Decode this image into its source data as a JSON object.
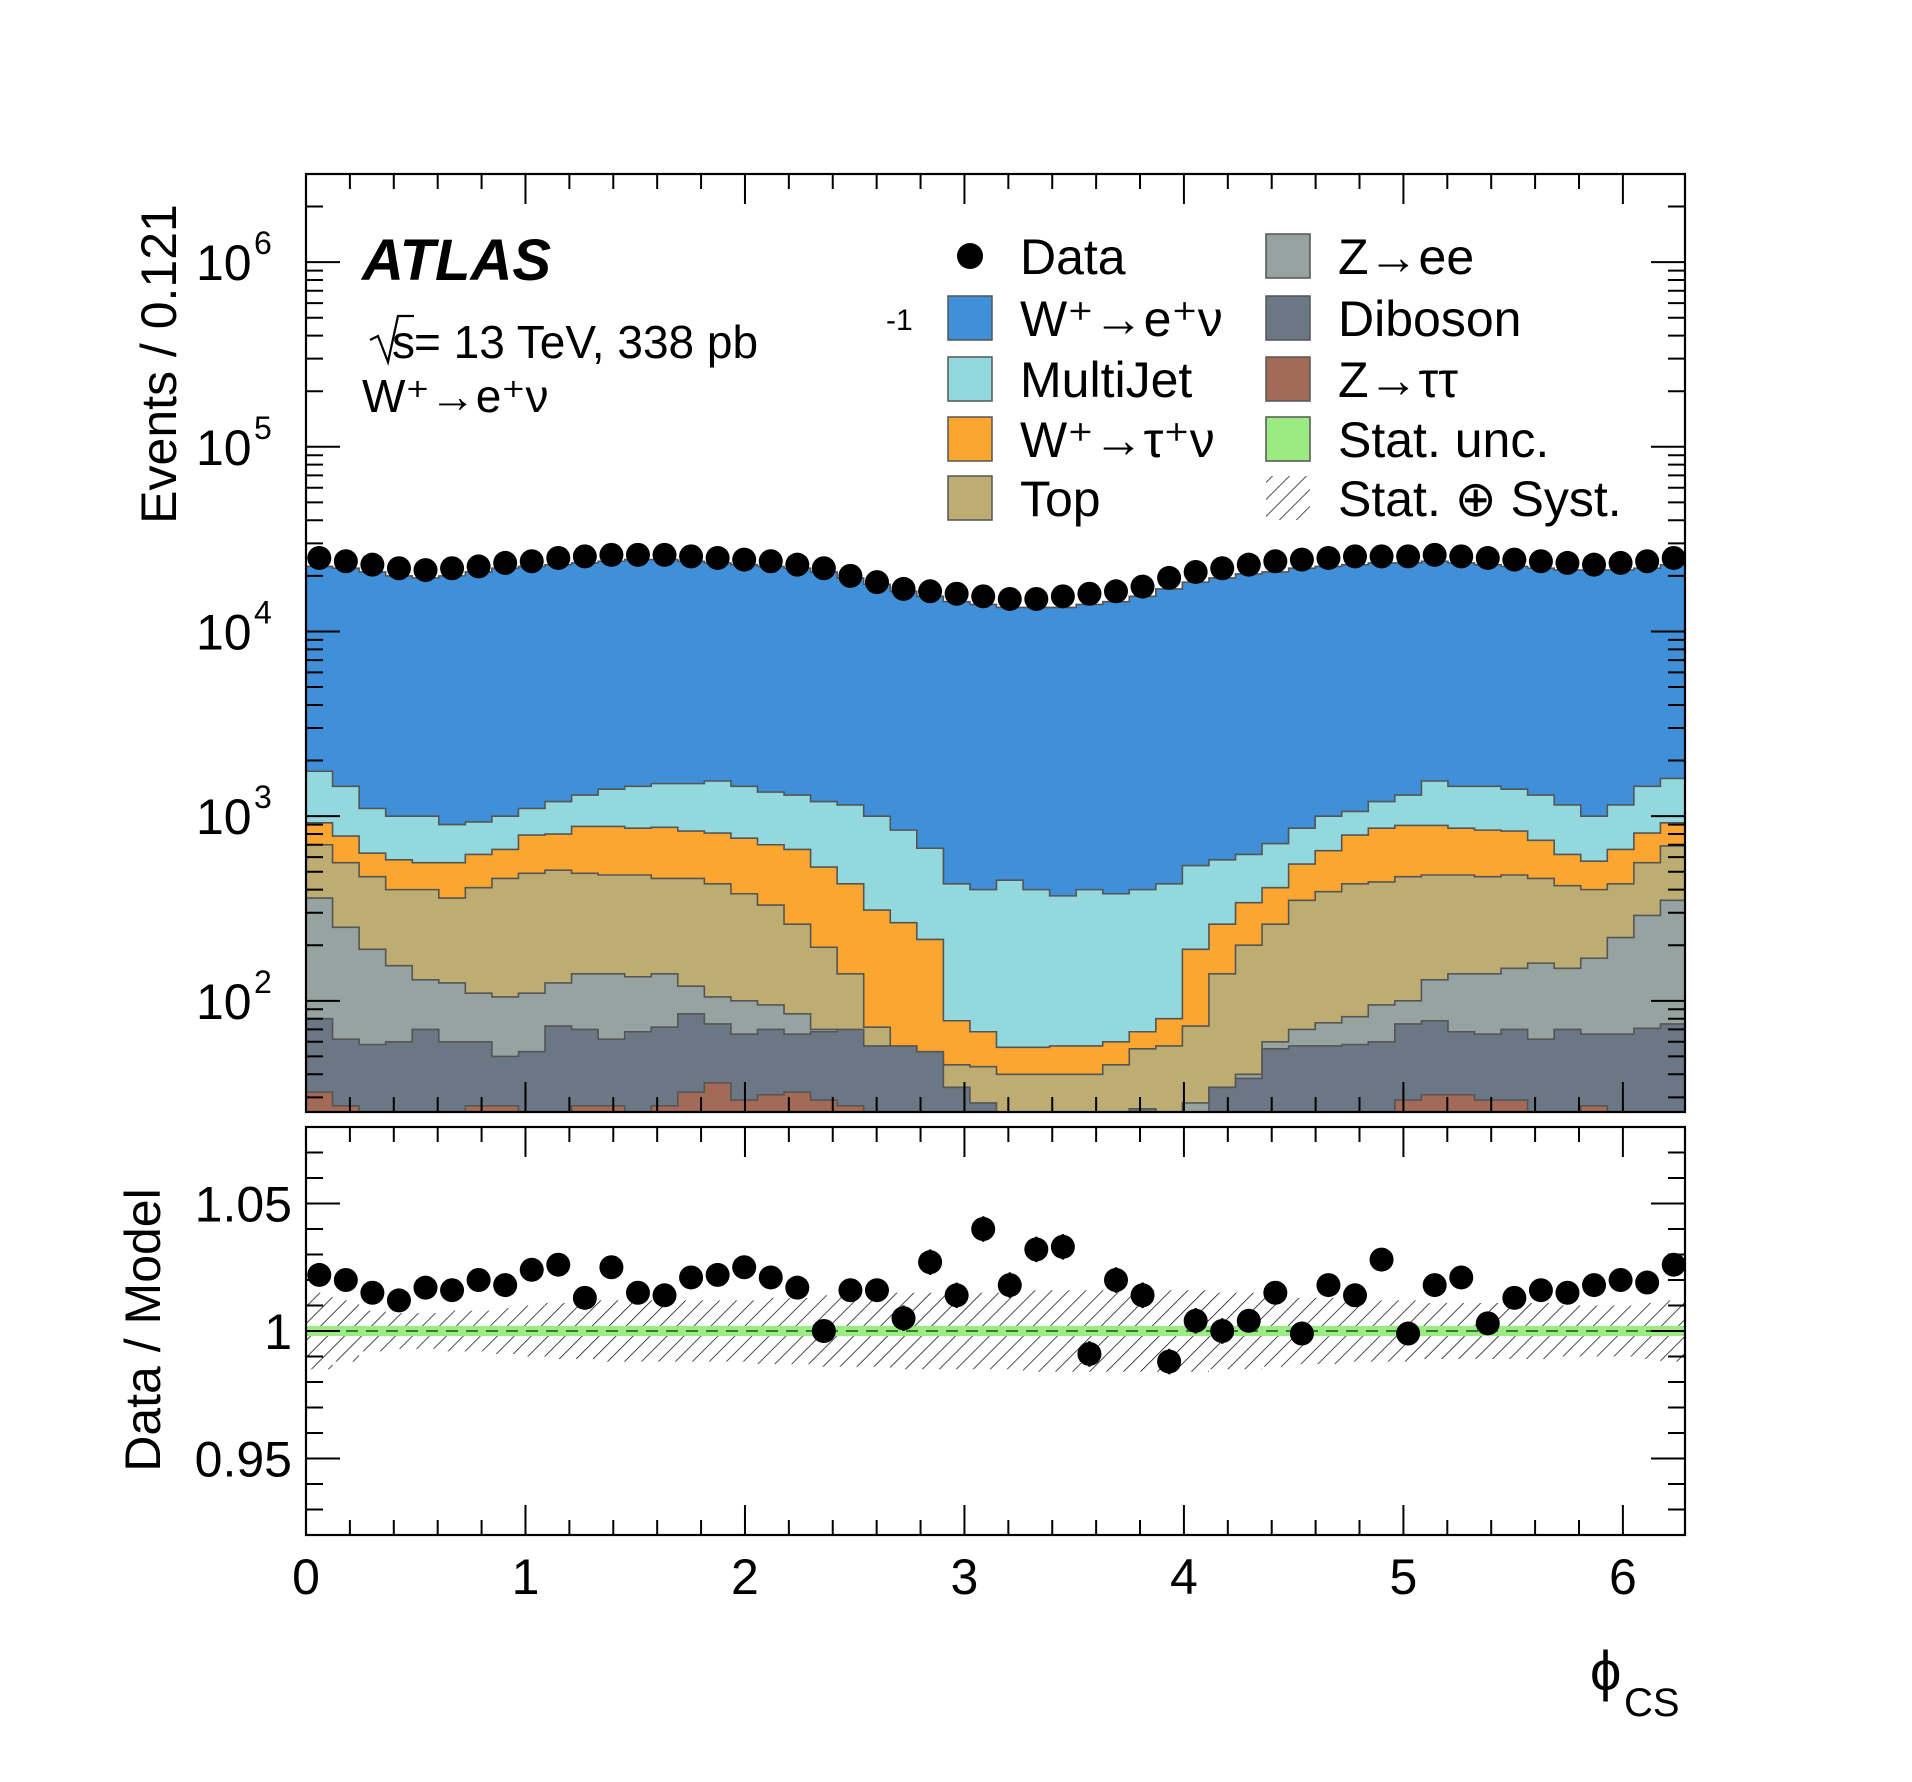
{
  "figure": {
    "experiment_label": "ATLAS",
    "energy_label_sqrt": "s",
    "energy_label_rest": " = 13 TeV, 338 pb",
    "energy_label_exp": "-1",
    "channel_label": "W⁺→e⁺ν"
  },
  "legend": {
    "entries": [
      {
        "label": "Data",
        "style": "marker",
        "color": "#000000"
      },
      {
        "label": "W⁺→e⁺ν",
        "style": "fill",
        "color": "#3f8fd9"
      },
      {
        "label": "MultiJet",
        "style": "fill",
        "color": "#93d8dc"
      },
      {
        "label": "W⁺→τ⁺ν",
        "style": "fill",
        "color": "#faa630"
      },
      {
        "label": "Top",
        "style": "fill",
        "color": "#bdad72"
      },
      {
        "label": "Z→ee",
        "style": "fill",
        "color": "#97a3a0"
      },
      {
        "label": "Diboson",
        "style": "fill",
        "color": "#6b7784"
      },
      {
        "label": "Z→ττ",
        "style": "fill",
        "color": "#a36a58"
      },
      {
        "label": "Stat. unc.",
        "style": "fill",
        "color": "#9beb82"
      },
      {
        "label": "Stat. ⊕ Syst.",
        "style": "hatch",
        "color": "#000000"
      }
    ]
  },
  "chart_data": [
    {
      "type": "area",
      "subtype": "stacked-histogram",
      "ylabel": "Events / 0.121",
      "yscale": "log",
      "ylim": [
        25,
        3000000
      ],
      "xlim": [
        0,
        6.283
      ],
      "yticks": [
        100,
        1000,
        10000,
        100000,
        1000000
      ],
      "ytick_labels": [
        {
          "base": "10",
          "exp": "2"
        },
        {
          "base": "10",
          "exp": "3"
        },
        {
          "base": "10",
          "exp": "4"
        },
        {
          "base": "10",
          "exp": "5"
        },
        {
          "base": "10",
          "exp": "6"
        }
      ],
      "bin_width": 0.121,
      "nbins": 52,
      "series_bottom_to_top": [
        "Z→ττ",
        "Diboson",
        "Z→ee",
        "Top",
        "W⁺→τ⁺ν",
        "MultiJet",
        "W⁺→e⁺ν"
      ],
      "stack_totals": {
        "Z→ττ": [
          32,
          27,
          23,
          22,
          22,
          22,
          27,
          27,
          22,
          22,
          27,
          27,
          24,
          27,
          32,
          36,
          29,
          31,
          32,
          29,
          27,
          24,
          24,
          22,
          22,
          20,
          18,
          14,
          14,
          14,
          14,
          14,
          14,
          14,
          14,
          18,
          20,
          22,
          22,
          22,
          24,
          29,
          31,
          31,
          29,
          29,
          24,
          22,
          27,
          24,
          21,
          21
        ],
        "Diboson": [
          80,
          62,
          58,
          60,
          70,
          60,
          60,
          50,
          53,
          73,
          70,
          62,
          68,
          72,
          85,
          75,
          66,
          70,
          66,
          68,
          70,
          57,
          57,
          53,
          34,
          28,
          24,
          24,
          24,
          24,
          24,
          26,
          24,
          24,
          34,
          38,
          55,
          57,
          57,
          58,
          60,
          75,
          78,
          68,
          66,
          70,
          62,
          70,
          66,
          66,
          71,
          75
        ],
        "Z→ee": [
          360,
          250,
          190,
          155,
          130,
          125,
          110,
          105,
          110,
          125,
          140,
          140,
          135,
          140,
          120,
          105,
          100,
          95,
          85,
          70,
          60,
          50,
          36,
          28,
          24,
          24,
          24,
          24,
          24,
          24,
          24,
          24,
          24,
          28,
          34,
          40,
          60,
          70,
          76,
          82,
          95,
          100,
          130,
          140,
          140,
          150,
          160,
          150,
          170,
          220,
          290,
          350
        ],
        "Top": [
          700,
          560,
          470,
          400,
          400,
          360,
          410,
          460,
          490,
          510,
          490,
          480,
          480,
          460,
          460,
          430,
          380,
          330,
          260,
          195,
          140,
          72,
          55,
          48,
          45,
          44,
          40,
          40,
          40,
          40,
          45,
          55,
          57,
          73,
          140,
          200,
          260,
          350,
          390,
          430,
          440,
          470,
          480,
          480,
          470,
          480,
          460,
          420,
          400,
          430,
          560,
          690
        ],
        "W⁺→τ⁺ν": [
          920,
          780,
          630,
          580,
          560,
          560,
          620,
          660,
          790,
          800,
          880,
          880,
          860,
          870,
          830,
          810,
          760,
          700,
          660,
          530,
          430,
          310,
          265,
          215,
          78,
          68,
          56,
          56,
          57,
          57,
          60,
          68,
          80,
          190,
          260,
          340,
          410,
          550,
          650,
          790,
          860,
          890,
          890,
          860,
          840,
          830,
          740,
          620,
          570,
          660,
          810,
          920
        ],
        "MultiJet": [
          1750,
          1450,
          1100,
          1000,
          1000,
          900,
          930,
          1000,
          1100,
          1200,
          1300,
          1400,
          1450,
          1500,
          1500,
          1550,
          1450,
          1350,
          1300,
          1200,
          1150,
          1000,
          840,
          670,
          430,
          400,
          450,
          400,
          370,
          400,
          380,
          400,
          430,
          540,
          580,
          620,
          710,
          860,
          1000,
          1060,
          1200,
          1300,
          1550,
          1450,
          1450,
          1400,
          1300,
          1150,
          1000,
          1150,
          1450,
          1600
        ],
        "W⁺→e⁺ν": [
          22500,
          22000,
          21000,
          20000,
          19500,
          20000,
          21000,
          22000,
          22500,
          23000,
          23500,
          24000,
          24500,
          24500,
          24000,
          23500,
          23000,
          22500,
          22000,
          21000,
          19500,
          18000,
          16500,
          15500,
          14500,
          14000,
          13500,
          13500,
          13500,
          14000,
          14500,
          15500,
          17000,
          18500,
          19500,
          20500,
          21000,
          22000,
          22500,
          23000,
          23500,
          23500,
          24000,
          23500,
          23000,
          22500,
          22000,
          21500,
          21500,
          21500,
          22000,
          23000
        ]
      },
      "data_values": [
        25000,
        24000,
        23000,
        22000,
        21500,
        22000,
        22500,
        23500,
        24000,
        25000,
        25500,
        26000,
        26000,
        26000,
        25500,
        25000,
        24500,
        24000,
        23000,
        22000,
        20000,
        18500,
        17000,
        16500,
        16000,
        15500,
        15000,
        15000,
        15500,
        16000,
        16500,
        17500,
        19500,
        21000,
        22000,
        23000,
        24000,
        24500,
        25000,
        25500,
        25500,
        25500,
        26000,
        25500,
        25000,
        24500,
        24000,
        23500,
        23000,
        23500,
        24000,
        25000
      ]
    },
    {
      "type": "scatter",
      "subtype": "ratio-panel",
      "ylabel": "Data / Model",
      "xlabel": "ϕ",
      "xlabel_sub": "CS",
      "ylim": [
        0.92,
        1.08
      ],
      "xlim": [
        0,
        6.283
      ],
      "yticks": [
        0.95,
        1,
        1.05
      ],
      "ytick_labels": [
        "0.95",
        "1",
        "1.05"
      ],
      "xticks": [
        0,
        1,
        2,
        3,
        4,
        5,
        6
      ],
      "xtick_labels": [
        "0",
        "1",
        "2",
        "3",
        "4",
        "5",
        "6"
      ],
      "reference_line": 1,
      "stat_band_halfwidth": 0.002,
      "syst_band_halfwidth": [
        0.015,
        0.012,
        0.008,
        0.007,
        0.007,
        0.008,
        0.008,
        0.009,
        0.01,
        0.011,
        0.011,
        0.012,
        0.012,
        0.012,
        0.012,
        0.012,
        0.012,
        0.013,
        0.013,
        0.014,
        0.014,
        0.014,
        0.015,
        0.015,
        0.015,
        0.015,
        0.015,
        0.016,
        0.016,
        0.016,
        0.016,
        0.016,
        0.016,
        0.016,
        0.015,
        0.015,
        0.014,
        0.013,
        0.013,
        0.012,
        0.012,
        0.012,
        0.011,
        0.011,
        0.011,
        0.011,
        0.011,
        0.01,
        0.01,
        0.01,
        0.011,
        0.012
      ],
      "values": [
        1.022,
        1.02,
        1.015,
        1.012,
        1.017,
        1.016,
        1.02,
        1.018,
        1.024,
        1.026,
        1.013,
        1.025,
        1.015,
        1.014,
        1.021,
        1.022,
        1.025,
        1.021,
        1.017,
        1.0,
        1.016,
        1.016,
        1.005,
        1.027,
        1.014,
        1.04,
        1.018,
        1.032,
        1.033,
        0.991,
        1.02,
        1.014,
        0.988,
        1.004,
        1.0,
        1.004,
        1.015,
        0.999,
        1.018,
        1.014,
        1.028,
        0.999,
        1.018,
        1.021,
        1.003,
        1.013,
        1.016,
        1.015,
        1.018,
        1.02,
        1.019,
        1.026
      ],
      "errors": [
        0.004,
        0.004,
        0.004,
        0.004,
        0.004,
        0.004,
        0.004,
        0.004,
        0.004,
        0.004,
        0.004,
        0.004,
        0.004,
        0.004,
        0.004,
        0.004,
        0.004,
        0.004,
        0.004,
        0.004,
        0.004,
        0.004,
        0.005,
        0.005,
        0.005,
        0.005,
        0.005,
        0.005,
        0.005,
        0.005,
        0.005,
        0.005,
        0.005,
        0.005,
        0.005,
        0.004,
        0.004,
        0.004,
        0.004,
        0.004,
        0.004,
        0.004,
        0.004,
        0.004,
        0.004,
        0.004,
        0.004,
        0.004,
        0.004,
        0.004,
        0.004,
        0.004
      ]
    }
  ]
}
